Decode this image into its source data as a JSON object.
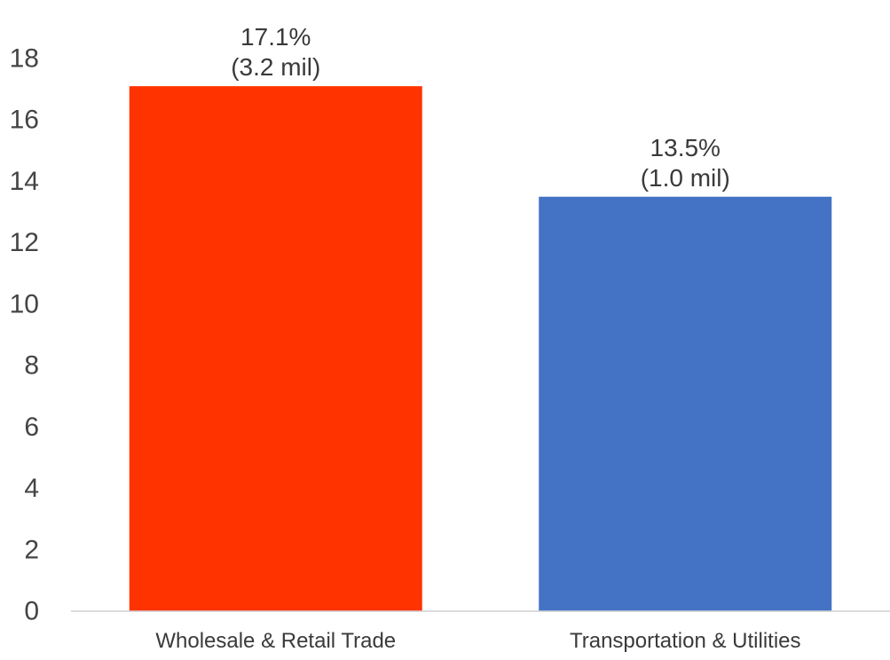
{
  "chart_data": {
    "type": "bar",
    "categories": [
      "Wholesale & Retail Trade",
      "Transportation & Utilities"
    ],
    "values": [
      17.1,
      13.5
    ],
    "data_labels": [
      [
        "17.1%",
        "(3.2 mil)"
      ],
      [
        "13.5%",
        "(1.0 mil)"
      ]
    ],
    "bar_colors": [
      "#FF3300",
      "#4472C4"
    ],
    "ylim": [
      0,
      18
    ],
    "yticks": [
      0,
      2,
      4,
      6,
      8,
      10,
      12,
      14,
      16,
      18
    ],
    "grid": false,
    "legend": "none",
    "title": "",
    "xlabel": "",
    "ylabel": ""
  }
}
